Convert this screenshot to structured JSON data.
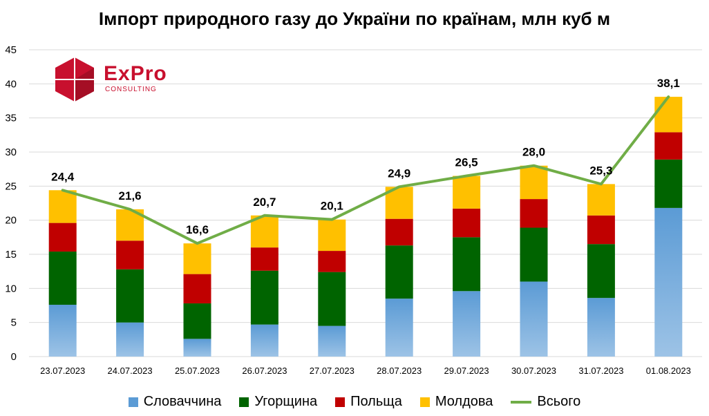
{
  "chart_data": {
    "type": "bar",
    "title": "Імпорт природного газу до України по країнам, млн куб м",
    "categories": [
      "23.07.2023",
      "24.07.2023",
      "25.07.2023",
      "26.07.2023",
      "27.07.2023",
      "28.07.2023",
      "29.07.2023",
      "30.07.2023",
      "31.07.2023",
      "01.08.2023"
    ],
    "ylim": [
      0,
      45
    ],
    "yticks": [
      "0",
      "5",
      "10",
      "15",
      "20",
      "25",
      "30",
      "35",
      "40",
      "45"
    ],
    "stacked": true,
    "series": [
      {
        "name": "Словаччина",
        "color": "#5b9bd5",
        "values": [
          7.6,
          5.0,
          2.6,
          4.7,
          4.5,
          8.5,
          9.6,
          11.0,
          8.6,
          21.8
        ]
      },
      {
        "name": "Угорщина",
        "color": "#006400",
        "values": [
          7.8,
          7.8,
          5.2,
          7.9,
          7.9,
          7.8,
          7.9,
          7.9,
          7.9,
          7.1
        ]
      },
      {
        "name": "Польща",
        "color": "#c00000",
        "values": [
          4.2,
          4.2,
          4.3,
          3.4,
          3.1,
          3.9,
          4.2,
          4.2,
          4.2,
          4.0
        ]
      },
      {
        "name": "Молдова",
        "color": "#ffc000",
        "values": [
          4.8,
          4.6,
          4.5,
          4.7,
          4.6,
          4.7,
          4.8,
          4.9,
          4.6,
          5.2
        ]
      }
    ],
    "total": {
      "name": "Всього",
      "color": "#70ad47",
      "values": [
        24.4,
        21.6,
        16.6,
        20.7,
        20.1,
        24.9,
        26.5,
        28.0,
        25.3,
        38.1
      ],
      "labels": [
        "24,4",
        "21,6",
        "16,6",
        "20,7",
        "20,1",
        "24,9",
        "26,5",
        "28,0",
        "25,3",
        "38,1"
      ]
    },
    "legend": [
      "Словаччина",
      "Угорщина",
      "Польща",
      "Молдова",
      "Всього"
    ]
  },
  "logo": {
    "brand": "ExPro",
    "sub": "CONSULTING"
  }
}
